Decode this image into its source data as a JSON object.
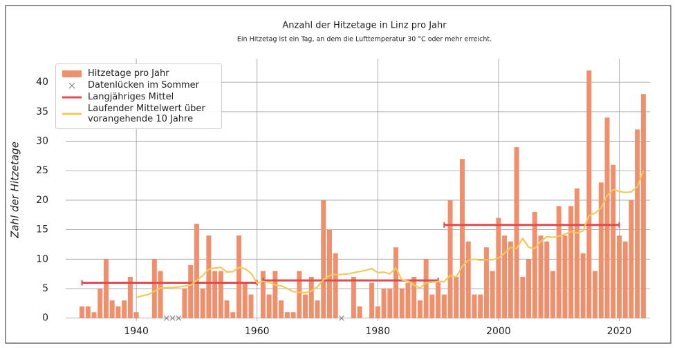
{
  "chart_data": {
    "type": "bar",
    "title": "Anzahl der Hitzetage in Linz pro Jahr",
    "subtitle": "Ein Hitzetag ist ein Tag, an dem die Lufttemperatur 30 °C oder mehr erreicht.",
    "y_label": "Zahl der Hitzetage",
    "x": [
      1931,
      1932,
      1933,
      1934,
      1935,
      1936,
      1937,
      1938,
      1939,
      1940,
      1941,
      1942,
      1943,
      1944,
      1945,
      1946,
      1947,
      1948,
      1949,
      1950,
      1951,
      1952,
      1953,
      1954,
      1955,
      1956,
      1957,
      1958,
      1959,
      1960,
      1961,
      1962,
      1963,
      1964,
      1965,
      1966,
      1967,
      1968,
      1969,
      1970,
      1971,
      1972,
      1973,
      1974,
      1975,
      1976,
      1977,
      1978,
      1979,
      1980,
      1981,
      1982,
      1983,
      1984,
      1985,
      1986,
      1987,
      1988,
      1989,
      1990,
      1991,
      1992,
      1993,
      1994,
      1995,
      1996,
      1997,
      1998,
      1999,
      2000,
      2001,
      2002,
      2003,
      2004,
      2005,
      2006,
      2007,
      2008,
      2009,
      2010,
      2011,
      2012,
      2013,
      2014,
      2015,
      2016,
      2017,
      2018,
      2019,
      2020,
      2021,
      2022,
      2023,
      2024
    ],
    "series": [
      {
        "name": "Hitzetage pro Jahr",
        "type": "bar",
        "color": "#ef8f6b",
        "values": [
          2,
          2,
          1,
          5,
          10,
          3,
          2,
          3,
          7,
          1,
          0,
          0,
          10,
          8,
          null,
          null,
          null,
          5,
          9,
          16,
          5,
          14,
          8,
          8,
          3,
          1,
          14,
          6,
          4,
          0,
          8,
          4,
          8,
          3,
          1,
          1,
          8,
          4,
          7,
          3,
          20,
          15,
          11,
          null,
          0,
          7,
          2,
          0,
          6,
          2,
          5,
          5,
          12,
          5,
          6,
          7,
          3,
          10,
          4,
          6,
          4,
          20,
          7,
          27,
          13,
          4,
          4,
          12,
          8,
          17,
          14,
          13,
          29,
          7,
          10,
          18,
          14,
          13,
          8,
          19,
          14,
          19,
          22,
          11,
          42,
          8,
          23,
          34,
          26,
          14,
          13,
          20,
          32,
          38
        ]
      },
      {
        "name": "Datenlücken im Sommer",
        "type": "scatter",
        "color": "#777777",
        "x": [
          1945,
          1946,
          1947,
          1974
        ],
        "values": [
          0,
          0,
          0,
          0
        ]
      },
      {
        "name": "Langjähriges Mittel",
        "type": "segments",
        "color": "#e5484d",
        "segments": [
          {
            "x": [
              1931,
              1960
            ],
            "value": 6.0
          },
          {
            "x": [
              1961,
              1990
            ],
            "value": 6.4
          },
          {
            "x": [
              1991,
              2020
            ],
            "value": 15.8
          }
        ]
      },
      {
        "name": "Laufender Mittelwert über vorangehende 10 Jahre",
        "type": "line",
        "color": "#f2c85b",
        "x": [
          1940,
          1941,
          1942,
          1943,
          1944,
          1945,
          1946,
          1947,
          1948,
          1949,
          1950,
          1951,
          1952,
          1953,
          1954,
          1955,
          1956,
          1957,
          1958,
          1959,
          1960,
          1961,
          1962,
          1963,
          1964,
          1965,
          1966,
          1967,
          1968,
          1969,
          1970,
          1971,
          1972,
          1973,
          1974,
          1975,
          1976,
          1977,
          1978,
          1979,
          1980,
          1981,
          1982,
          1983,
          1984,
          1985,
          1986,
          1987,
          1988,
          1989,
          1990,
          1991,
          1992,
          1993,
          1994,
          1995,
          1996,
          1997,
          1998,
          1999,
          2000,
          2001,
          2002,
          2003,
          2004,
          2005,
          2006,
          2007,
          2008,
          2009,
          2010,
          2011,
          2012,
          2013,
          2014,
          2015,
          2016,
          2017,
          2018,
          2019,
          2020,
          2021,
          2022,
          2023,
          2024
        ],
        "values": [
          3.5,
          3.8,
          4.0,
          4.6,
          5.1,
          5.2,
          5.2,
          5.3,
          5.4,
          5.6,
          6.4,
          7.2,
          8.3,
          8.5,
          8.6,
          7.8,
          7.9,
          8.6,
          8.4,
          7.6,
          6.0,
          6.2,
          6.1,
          5.6,
          5.5,
          5.0,
          4.5,
          4.4,
          4.3,
          4.6,
          5.3,
          6.5,
          7.2,
          7.4,
          7.4,
          7.5,
          7.7,
          7.9,
          8.1,
          8.4,
          7.7,
          7.8,
          7.5,
          8.5,
          6.5,
          6.3,
          5.6,
          5.1,
          6.0,
          6.1,
          6.2,
          6.2,
          7.2,
          7.0,
          8.8,
          9.8,
          10.0,
          9.8,
          9.9,
          9.9,
          10.2,
          11.0,
          12.0,
          11.8,
          13.5,
          12.0,
          11.8,
          13.0,
          13.8,
          13.7,
          13.9,
          14.2,
          14.7,
          14.4,
          14.8,
          17.4,
          17.8,
          18.7,
          20.8,
          21.8,
          21.5,
          21.3,
          21.4,
          22.3,
          25.0
        ]
      }
    ],
    "xlim": [
      1928.3,
      2025.1
    ],
    "xticks": [
      1940,
      1960,
      1980,
      2000,
      2020
    ],
    "ylim": [
      -0.5,
      44
    ],
    "yticks": [
      0,
      5,
      10,
      15,
      20,
      25,
      30,
      35,
      40
    ],
    "grid": true
  }
}
